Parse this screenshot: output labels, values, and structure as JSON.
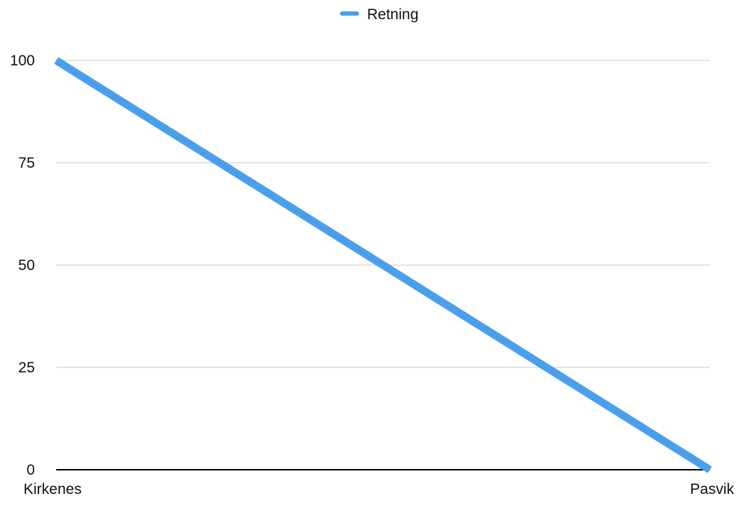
{
  "chart_data": {
    "type": "line",
    "categories": [
      "Kirkenes",
      "Pasvik"
    ],
    "series": [
      {
        "name": "Retning",
        "values": [
          100,
          0
        ],
        "color": "#4A9FEB"
      }
    ],
    "y_ticks": [
      "0",
      "25",
      "50",
      "75",
      "100"
    ],
    "ylim": [
      0,
      100
    ],
    "grid": true,
    "legend_position": "top-center",
    "colors": {
      "grid": "#c8c8c8",
      "axis": "#000000",
      "text": "#111111"
    }
  }
}
